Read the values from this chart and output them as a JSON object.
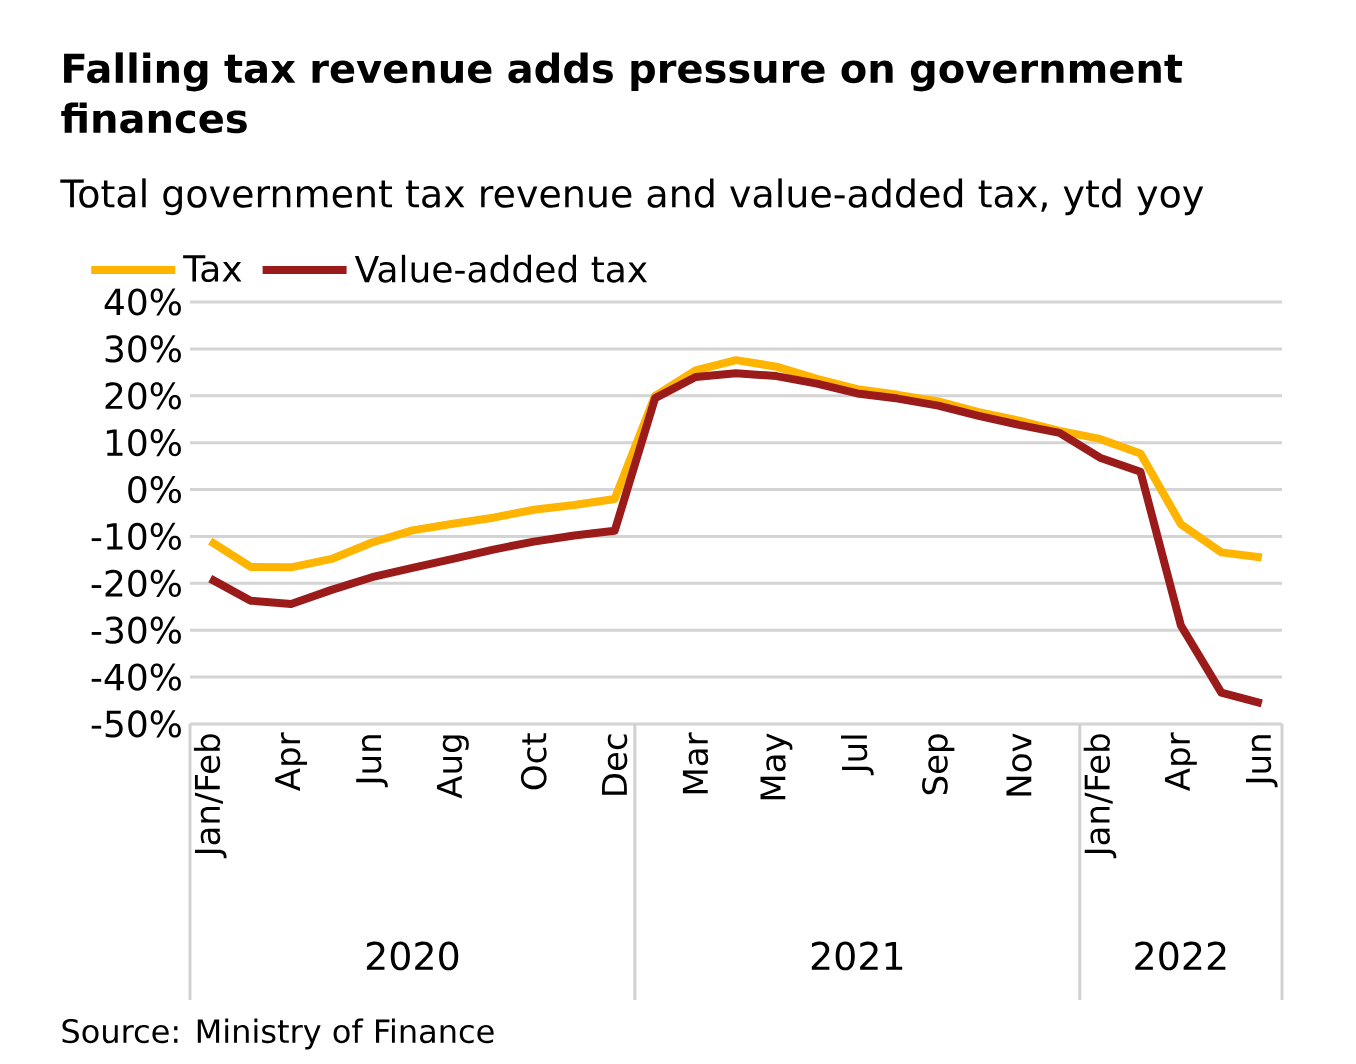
{
  "chart_data": {
    "type": "line",
    "title": "Falling tax revenue adds pressure on government finances",
    "subtitle": "Total government tax revenue and value-added tax, ytd yoy",
    "categories": [
      "Jan/Feb",
      null,
      "Apr",
      null,
      "Jun",
      null,
      "Aug",
      null,
      "Oct",
      null,
      "Dec",
      null,
      "Mar",
      null,
      "May",
      null,
      "Jul",
      null,
      "Sep",
      null,
      "Nov",
      null,
      "Jan/Feb",
      null,
      "Apr",
      null,
      "Jun"
    ],
    "series": [
      {
        "name": "Tax",
        "color": "#ffb400",
        "values": [
          -11,
          -16.5,
          -16.6,
          -14.8,
          -11.3,
          -8.7,
          -7.3,
          -6,
          -4.3,
          -3.3,
          -2,
          20,
          25.4,
          27.6,
          26.2,
          23.6,
          21.4,
          20.2,
          18.8,
          16.5,
          14.7,
          12.5,
          10.8,
          7.7,
          -7.4,
          -13.4,
          -14.5
        ]
      },
      {
        "name": "Value-added tax",
        "color": "#9b1b1b",
        "values": [
          -19,
          -23.7,
          -24.4,
          -21.4,
          -18.7,
          -16.7,
          -14.8,
          -12.8,
          -11.1,
          -9.8,
          -8.8,
          19.5,
          24,
          24.8,
          24.2,
          22.6,
          20.5,
          19.4,
          17.9,
          15.7,
          13.8,
          12.1,
          6.8,
          3.8,
          -29,
          -43.3,
          -45.6
        ]
      }
    ],
    "ylim": [
      -50,
      40
    ],
    "yticks": [
      {
        "value": -50,
        "label": "-50%"
      },
      {
        "value": -40,
        "label": "-40%"
      },
      {
        "value": -30,
        "label": "-30%"
      },
      {
        "value": -20,
        "label": "-20%"
      },
      {
        "value": -10,
        "label": "-10%"
      },
      {
        "value": 0,
        "label": "0%"
      },
      {
        "value": 10,
        "label": "10%"
      },
      {
        "value": 20,
        "label": "20%"
      },
      {
        "value": 30,
        "label": "30%"
      },
      {
        "value": 40,
        "label": "40%"
      }
    ],
    "grid": "y",
    "legend": "top left",
    "marker": "none",
    "line_style": "solid",
    "annotations": [
      "2020",
      "2021",
      "2022",
      "Source: Ministry of Finance"
    ]
  }
}
